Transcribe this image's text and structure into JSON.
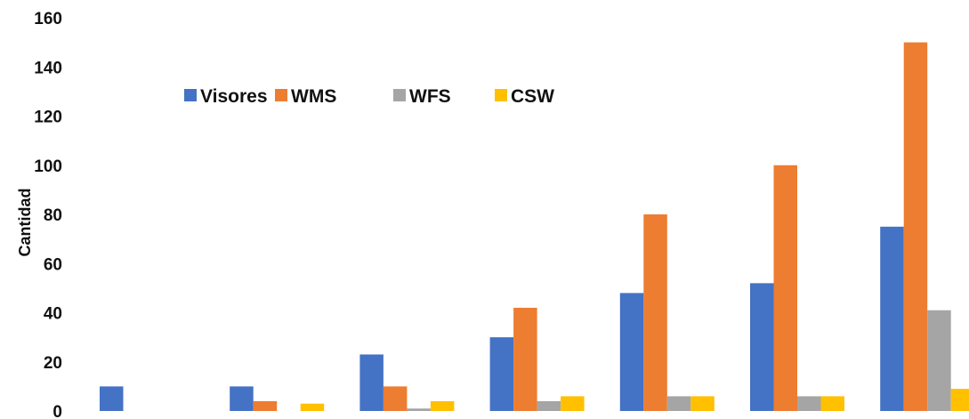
{
  "chart_data": {
    "type": "bar",
    "title": "",
    "xlabel": "",
    "ylabel": "Cantidad",
    "ylim": [
      0,
      160
    ],
    "yticks": [
      "0",
      "20",
      "40",
      "60",
      "80",
      "100",
      "120",
      "140",
      "160"
    ],
    "categories": [
      "",
      "",
      "",
      "",
      "",
      "",
      ""
    ],
    "grid": false,
    "legend_position": "top-left",
    "series": [
      {
        "name": "Visores",
        "color": "#4472C4",
        "values": [
          10,
          10,
          23,
          30,
          48,
          52,
          75
        ]
      },
      {
        "name": "WMS",
        "color": "#ED7D31",
        "values": [
          0,
          4,
          10,
          42,
          80,
          100,
          150
        ]
      },
      {
        "name": "WFS",
        "color": "#A5A5A5",
        "values": [
          0,
          0,
          1,
          4,
          6,
          6,
          41
        ]
      },
      {
        "name": "CSW",
        "color": "#FFC000",
        "values": [
          0,
          3,
          4,
          6,
          6,
          6,
          9
        ]
      }
    ]
  }
}
